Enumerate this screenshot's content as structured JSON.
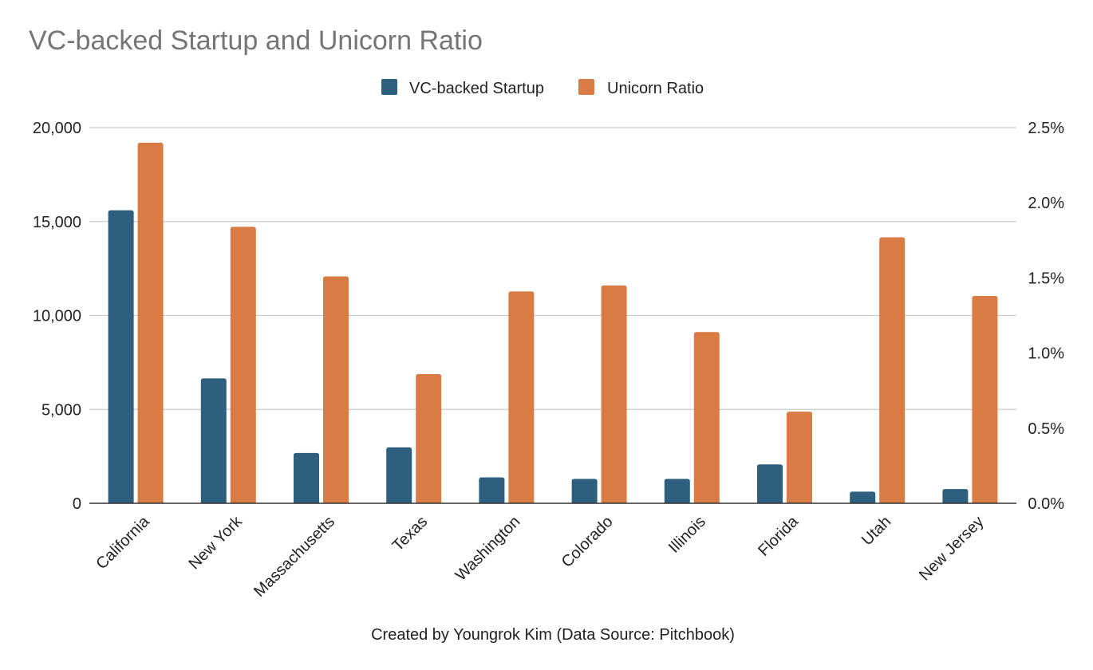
{
  "chart_data": {
    "type": "bar",
    "title": "VC-backed Startup and Unicorn Ratio",
    "xlabel": "Created by Youngrok Kim (Data Source: Pitchbook)",
    "ylabel": "",
    "y2label": "",
    "categories": [
      "California",
      "New York",
      "Massachusetts",
      "Texas",
      "Washington",
      "Colorado",
      "Illinois",
      "Florida",
      "Utah",
      "New Jersey"
    ],
    "series": [
      {
        "name": "VC-backed Startup",
        "axis": "left",
        "color": "#2e5f7f",
        "values": [
          15600,
          6650,
          2680,
          2980,
          1380,
          1300,
          1300,
          2070,
          620,
          760
        ]
      },
      {
        "name": "Unicorn Ratio",
        "axis": "right",
        "color": "#d97b45",
        "values": [
          2.4,
          1.84,
          1.51,
          0.86,
          1.41,
          1.45,
          1.14,
          0.61,
          1.77,
          1.38
        ]
      }
    ],
    "ylim": [
      0,
      20000
    ],
    "yticks": [
      0,
      5000,
      10000,
      15000,
      20000
    ],
    "ytick_labels": [
      "0",
      "5,000",
      "10,000",
      "15,000",
      "20,000"
    ],
    "y2lim": [
      0,
      2.5
    ],
    "y2ticks": [
      0,
      0.5,
      1.0,
      1.5,
      2.0,
      2.5
    ],
    "y2tick_labels": [
      "0.0%",
      "0.5%",
      "1.0%",
      "1.5%",
      "2.0%",
      "2.5%"
    ],
    "legend_position": "top-center",
    "grid": true
  }
}
